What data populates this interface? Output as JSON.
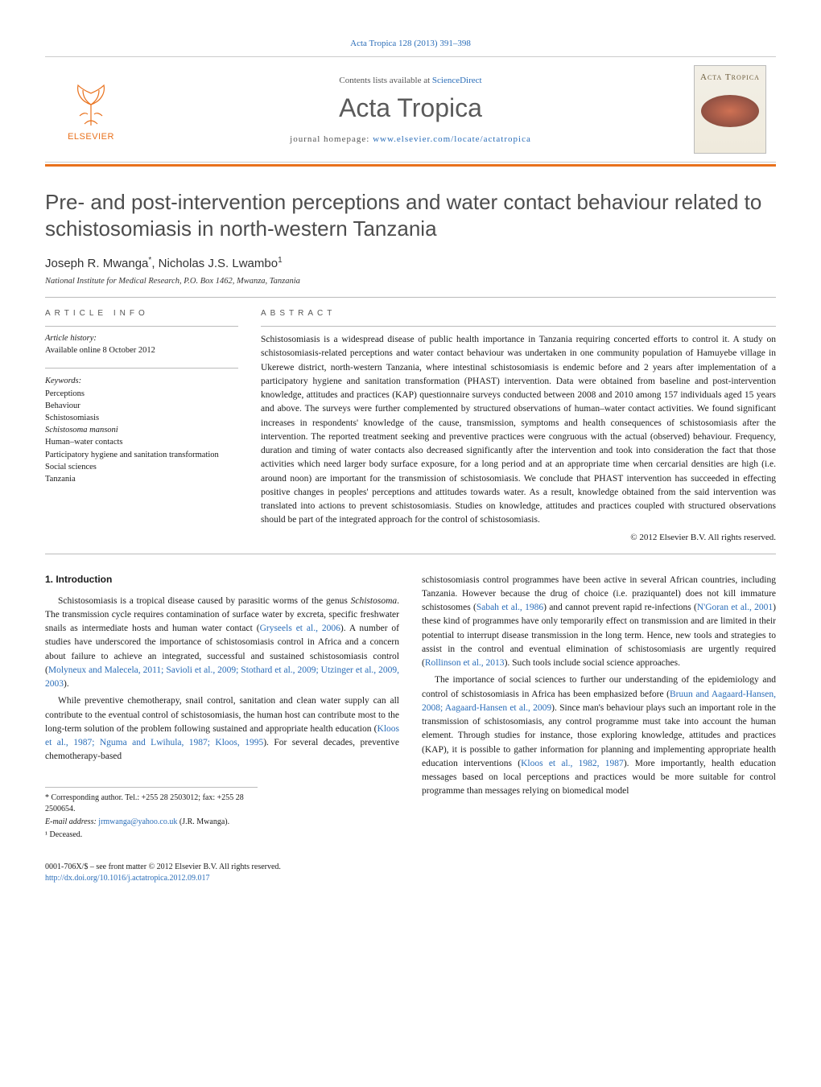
{
  "masthead": {
    "citation_header": "Acta Tropica 128 (2013) 391–398",
    "contents_prefix": "Contents lists available at ",
    "sciencedirect": "ScienceDirect",
    "journal_name": "Acta Tropica",
    "homepage_prefix": "journal homepage: ",
    "homepage_url": "www.elsevier.com/locate/actatropica",
    "publisher_logo_text": "ELSEVIER",
    "cover_journal_text": "Acta Tropica"
  },
  "article": {
    "title": "Pre- and post-intervention perceptions and water contact behaviour related to schistosomiasis in north-western Tanzania",
    "author_line": "Joseph R. Mwanga*, Nicholas J.S. Lwambo¹",
    "authors_html_parts": {
      "a1": "Joseph R. Mwanga",
      "star": "*",
      "sep": ", ",
      "a2": "Nicholas J.S. Lwambo",
      "sup2": "1"
    },
    "affiliation": "National Institute for Medical Research, P.O. Box 1462, Mwanza, Tanzania"
  },
  "info": {
    "label": "ARTICLE INFO",
    "history_head": "Article history:",
    "history_line": "Available online 8 October 2012",
    "keywords_head": "Keywords:",
    "keywords": [
      {
        "text": "Perceptions",
        "italic": false
      },
      {
        "text": "Behaviour",
        "italic": false
      },
      {
        "text": "Schistosomiasis",
        "italic": false
      },
      {
        "text": "Schistosoma mansoni",
        "italic": true
      },
      {
        "text": "Human–water contacts",
        "italic": false
      },
      {
        "text": "Participatory hygiene and sanitation transformation",
        "italic": false
      },
      {
        "text": "Social sciences",
        "italic": false
      },
      {
        "text": "Tanzania",
        "italic": false
      }
    ]
  },
  "abstract": {
    "label": "ABSTRACT",
    "text": "Schistosomiasis is a widespread disease of public health importance in Tanzania requiring concerted efforts to control it. A study on schistosomiasis-related perceptions and water contact behaviour was undertaken in one community population of Hamuyebe village in Ukerewe district, north-western Tanzania, where intestinal schistosomiasis is endemic before and 2 years after implementation of a participatory hygiene and sanitation transformation (PHAST) intervention. Data were obtained from baseline and post-intervention knowledge, attitudes and practices (KAP) questionnaire surveys conducted between 2008 and 2010 among 157 individuals aged 15 years and above. The surveys were further complemented by structured observations of human–water contact activities. We found significant increases in respondents' knowledge of the cause, transmission, symptoms and health consequences of schistosomiasis after the intervention. The reported treatment seeking and preventive practices were congruous with the actual (observed) behaviour. Frequency, duration and timing of water contacts also decreased significantly after the intervention and took into consideration the fact that those activities which need larger body surface exposure, for a long period and at an appropriate time when cercarial densities are high (i.e. around noon) are important for the transmission of schistosomiasis. We conclude that PHAST intervention has succeeded in effecting positive changes in peoples' perceptions and attitudes towards water. As a result, knowledge obtained from the said intervention was translated into actions to prevent schistosomiasis. Studies on knowledge, attitudes and practices coupled with structured observations should be part of the integrated approach for the control of schistosomiasis.",
    "copyright": "© 2012 Elsevier B.V. All rights reserved."
  },
  "body": {
    "sec1_heading": "1. Introduction",
    "left_paras": [
      {
        "runs": [
          {
            "t": "Schistosomiasis is a tropical disease caused by parasitic worms of the genus "
          },
          {
            "t": "Schistosoma",
            "italic": true
          },
          {
            "t": ". The transmission cycle requires contamination of surface water by excreta, specific freshwater snails as intermediate hosts and human water contact ("
          },
          {
            "t": "Gryseels et al., 2006",
            "cite": true
          },
          {
            "t": "). A number of studies have underscored the importance of schistosomiasis control in Africa and a concern about failure to achieve an integrated, successful and sustained schistosomiasis control ("
          },
          {
            "t": "Molyneux and Malecela, 2011; Savioli et al., 2009; Stothard et al., 2009; Utzinger et al., 2009, 2003",
            "cite": true
          },
          {
            "t": ")."
          }
        ]
      },
      {
        "runs": [
          {
            "t": "While preventive chemotherapy, snail control, sanitation and clean water supply can all contribute to the eventual control of schistosomiasis, the human host can contribute most to the long-term solution of the problem following sustained and appropriate health education ("
          },
          {
            "t": "Kloos et al., 1987; Nguma and Lwihula, 1987; Kloos, 1995",
            "cite": true
          },
          {
            "t": "). For several decades, preventive chemotherapy-based"
          }
        ]
      }
    ],
    "right_paras": [
      {
        "runs": [
          {
            "t": "schistosomiasis control programmes have been active in several African countries, including Tanzania. However because the drug of choice (i.e. praziquantel) does not kill immature schistosomes ("
          },
          {
            "t": "Sabah et al., 1986",
            "cite": true
          },
          {
            "t": ") and cannot prevent rapid re-infections ("
          },
          {
            "t": "N'Goran et al., 2001",
            "cite": true
          },
          {
            "t": ") these kind of programmes have only temporarily effect on transmission and are limited in their potential to interrupt disease transmission in the long term. Hence, new tools and strategies to assist in the control and eventual elimination of schistosomiasis are urgently required ("
          },
          {
            "t": "Rollinson et al., 2013",
            "cite": true
          },
          {
            "t": "). Such tools include social science approaches."
          }
        ],
        "noindent": true
      },
      {
        "runs": [
          {
            "t": "The importance of social sciences to further our understanding of the epidemiology and control of schistosomiasis in Africa has been emphasized before ("
          },
          {
            "t": "Bruun and Aagaard-Hansen, 2008; Aagaard-Hansen et al., 2009",
            "cite": true
          },
          {
            "t": "). Since man's behaviour plays such an important role in the transmission of schistosomiasis, any control programme must take into account the human element. Through studies for instance, those exploring knowledge, attitudes and practices (KAP), it is possible to gather information for planning and implementing appropriate health education interventions ("
          },
          {
            "t": "Kloos et al., 1982, 1987",
            "cite": true
          },
          {
            "t": "). More importantly, health education messages based on local perceptions and practices would be more suitable for control programme than messages relying on biomedical model"
          }
        ]
      }
    ]
  },
  "footnotes": {
    "corr": "* Corresponding author. Tel.: +255 28 2503012; fax: +255 28 2500654.",
    "email_label": "E-mail address:",
    "email": "jrmwanga@yahoo.co.uk",
    "email_tail": " (J.R. Mwanga).",
    "deceased": "¹ Deceased."
  },
  "footer": {
    "line1": "0001-706X/$ – see front matter © 2012 Elsevier B.V. All rights reserved.",
    "doi": "http://dx.doi.org/10.1016/j.actatropica.2012.09.017"
  },
  "colors": {
    "link": "#2a6db8",
    "orange": "#e9711c",
    "text": "#1a1a1a",
    "grey_title": "#4d4d4d"
  }
}
